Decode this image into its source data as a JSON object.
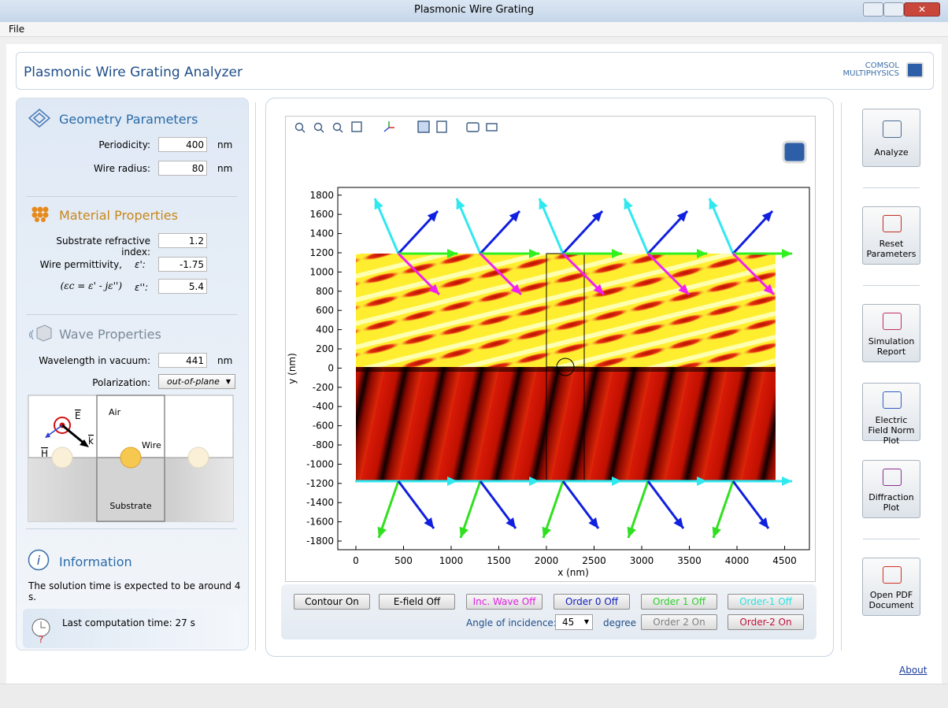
{
  "window": {
    "title": "Plasmonic Wire Grating",
    "menu": [
      "File"
    ]
  },
  "header": {
    "title": "Plasmonic Wire Grating Analyzer",
    "logo_line1": "COMSOL",
    "logo_line2": "MULTIPHYSICS"
  },
  "geometry": {
    "title": "Geometry Parameters",
    "fields": [
      {
        "label": "Periodicity:",
        "value": 400,
        "unit": "nm"
      },
      {
        "label": "Wire radius:",
        "value": 80,
        "unit": "nm"
      }
    ]
  },
  "material": {
    "title": "Material Properties",
    "fields": [
      {
        "label": "Substrate refractive index:",
        "value": 1.2
      },
      {
        "label": "Wire permittivity,",
        "symbol": "ε':",
        "value": -1.75
      },
      {
        "label": "(εc = ε' - jε'')",
        "symbol": "ε'':",
        "value": 5.4
      }
    ]
  },
  "wave": {
    "title": "Wave Properties",
    "fields": [
      {
        "label": "Wavelength in vacuum:",
        "value": 441,
        "unit": "nm"
      },
      {
        "label": "Polarization:",
        "value": "out-of-plane"
      }
    ]
  },
  "diagram": {
    "e": "E",
    "h": "H",
    "k": "k",
    "air": "Air",
    "wire": "Wire",
    "substrate": "Substrate"
  },
  "information": {
    "title": "Information",
    "text": "The solution time is expected to be around 4 s.",
    "last_time": "Last computation time: 27 s"
  },
  "plot": {
    "xlabel": "x (nm)",
    "ylabel": "y (nm)",
    "xlim": [
      -190,
      4760
    ],
    "ylim": [
      -1890,
      1880
    ],
    "xticks": [
      0,
      500,
      1000,
      1500,
      2000,
      2500,
      3000,
      3500,
      4000,
      4500
    ],
    "yticks": [
      -1800,
      -1600,
      -1400,
      -1200,
      -1000,
      -800,
      -600,
      -400,
      -200,
      0,
      200,
      400,
      600,
      800,
      1000,
      1200,
      1400,
      1600,
      1800
    ]
  },
  "controls": {
    "buttons": [
      {
        "label": "Contour On",
        "color": "#000000"
      },
      {
        "label": "E-field Off",
        "color": "#000000"
      },
      {
        "label": "Inc. Wave Off",
        "color": "#e020e0"
      },
      {
        "label": "Order 0 Off",
        "color": "#1020c0"
      },
      {
        "label": "Order 1 Off",
        "color": "#30d030"
      },
      {
        "label": "Order-1 Off",
        "color": "#30e0e0"
      }
    ],
    "angle_label": "Angle of incidence:",
    "angle": 45,
    "angle_unit": "degree",
    "buttons2": [
      {
        "label": "Order 2 On",
        "color": "#808080"
      },
      {
        "label": "Order-2 On",
        "color": "#c0103a"
      }
    ]
  },
  "sidebar": [
    "Analyze",
    "Reset Parameters",
    "Simulation Report",
    "Electric Field Norm Plot",
    "Diffraction Plot",
    "Open PDF Document"
  ],
  "footer": {
    "about": "About"
  }
}
